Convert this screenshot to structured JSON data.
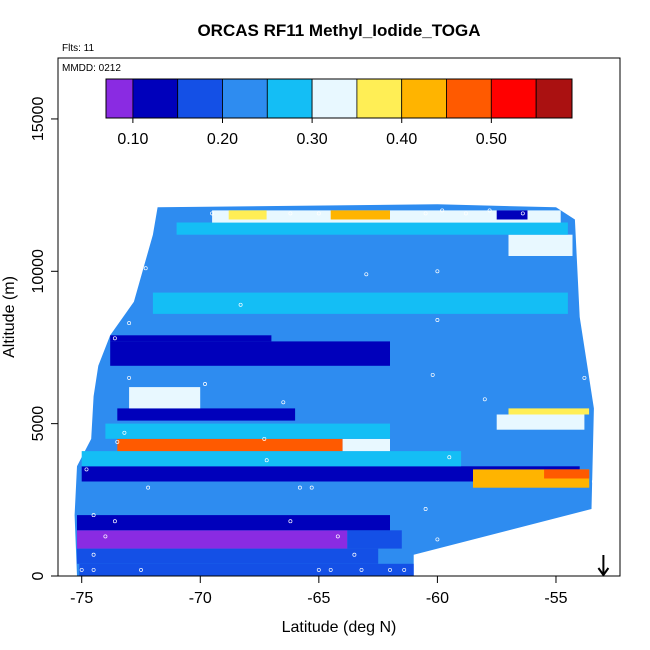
{
  "chart_data": {
    "type": "heatmap",
    "title": "ORCAS RF11 Methyl_Iodide_TOGA",
    "flights_label": "Flts: 11",
    "date_label": "MMDD: 0212",
    "xlabel": "Latitude (deg N)",
    "ylabel": "Altitude (m)",
    "xlim": [
      -76.0,
      -52.3
    ],
    "ylim": [
      0,
      17000
    ],
    "xticks": [
      -75,
      -70,
      -65,
      -60,
      -55
    ],
    "xtick_labels": [
      "-75",
      "-70",
      "-65",
      "-60",
      "-55"
    ],
    "yticks": [
      0,
      5000,
      10000,
      15000
    ],
    "ytick_labels": [
      "0",
      "5000",
      "10000",
      "15000"
    ],
    "grid": false,
    "colorbar": {
      "location": "top-inside",
      "range": [
        0.07,
        0.59
      ],
      "bins": [
        {
          "from": 0.07,
          "to": 0.1,
          "color": "#8a2be2"
        },
        {
          "from": 0.1,
          "to": 0.15,
          "color": "#0000bb"
        },
        {
          "from": 0.15,
          "to": 0.2,
          "color": "#1450e6"
        },
        {
          "from": 0.2,
          "to": 0.25,
          "color": "#2e8cf0"
        },
        {
          "from": 0.25,
          "to": 0.3,
          "color": "#14bef5"
        },
        {
          "from": 0.3,
          "to": 0.35,
          "color": "#e8f8ff"
        },
        {
          "from": 0.35,
          "to": 0.4,
          "color": "#ffee55"
        },
        {
          "from": 0.4,
          "to": 0.45,
          "color": "#ffb400"
        },
        {
          "from": 0.45,
          "to": 0.5,
          "color": "#ff5a00"
        },
        {
          "from": 0.5,
          "to": 0.55,
          "color": "#ff0000"
        },
        {
          "from": 0.55,
          "to": 0.59,
          "color": "#aa1111"
        }
      ],
      "ticks": [
        0.1,
        0.2,
        0.3,
        0.4,
        0.5
      ],
      "tick_labels": [
        "0.10",
        "0.20",
        "0.30",
        "0.40",
        "0.50"
      ]
    },
    "background_value": 0.22,
    "bands": [
      {
        "alt": [
          0,
          400
        ],
        "lat": [
          -75.1,
          -61.0
        ],
        "value": 0.15
      },
      {
        "alt": [
          400,
          900
        ],
        "lat": [
          -75.2,
          -62.5
        ],
        "value": 0.17
      },
      {
        "alt": [
          900,
          1500
        ],
        "lat": [
          -75.2,
          -63.8
        ],
        "value": 0.09
      },
      {
        "alt": [
          900,
          1500
        ],
        "lat": [
          -63.8,
          -61.5
        ],
        "value": 0.18
      },
      {
        "alt": [
          1500,
          2000
        ],
        "lat": [
          -75.2,
          -62.0
        ],
        "value": 0.13
      },
      {
        "alt": [
          3100,
          3600
        ],
        "lat": [
          -75.0,
          -54.0
        ],
        "value": 0.12
      },
      {
        "alt": [
          2900,
          3500
        ],
        "lat": [
          -58.5,
          -53.6
        ],
        "value": 0.42
      },
      {
        "alt": [
          3200,
          3500
        ],
        "lat": [
          -55.5,
          -53.6
        ],
        "value": 0.46
      },
      {
        "alt": [
          3600,
          4100
        ],
        "lat": [
          -75.0,
          -59.0
        ],
        "value": 0.26
      },
      {
        "alt": [
          4100,
          4500
        ],
        "lat": [
          -73.5,
          -64.0
        ],
        "value": 0.46
      },
      {
        "alt": [
          4100,
          4500
        ],
        "lat": [
          -64.0,
          -62.0
        ],
        "value": 0.34
      },
      {
        "alt": [
          4500,
          5000
        ],
        "lat": [
          -74.0,
          -62.0
        ],
        "value": 0.26
      },
      {
        "alt": [
          5100,
          5500
        ],
        "lat": [
          -73.5,
          -66.0
        ],
        "value": 0.12
      },
      {
        "alt": [
          5300,
          5500
        ],
        "lat": [
          -57.0,
          -53.6
        ],
        "value": 0.38
      },
      {
        "alt": [
          4800,
          5300
        ],
        "lat": [
          -57.5,
          -53.8
        ],
        "value": 0.3
      },
      {
        "alt": [
          5500,
          6200
        ],
        "lat": [
          -73.0,
          -70.0
        ],
        "value": 0.31
      },
      {
        "alt": [
          6900,
          7700
        ],
        "lat": [
          -73.8,
          -62.0
        ],
        "value": 0.13
      },
      {
        "alt": [
          7700,
          7900
        ],
        "lat": [
          -73.8,
          -67.0
        ],
        "value": 0.14
      },
      {
        "alt": [
          8600,
          9300
        ],
        "lat": [
          -72.0,
          -54.5
        ],
        "value": 0.26
      },
      {
        "alt": [
          10300,
          10800
        ],
        "lat": [
          -72.0,
          -56.5
        ],
        "value": 0.2
      },
      {
        "alt": [
          10500,
          11200
        ],
        "lat": [
          -57.0,
          -54.3
        ],
        "value": 0.3
      },
      {
        "alt": [
          11200,
          11600
        ],
        "lat": [
          -71.0,
          -54.5
        ],
        "value": 0.27
      },
      {
        "alt": [
          11600,
          12000
        ],
        "lat": [
          -69.5,
          -54.8
        ],
        "value": 0.31
      },
      {
        "alt": [
          11700,
          12000
        ],
        "lat": [
          -68.8,
          -67.2
        ],
        "value": 0.37
      },
      {
        "alt": [
          11700,
          12000
        ],
        "lat": [
          -64.5,
          -62.0
        ],
        "value": 0.42
      },
      {
        "alt": [
          11700,
          12000
        ],
        "lat": [
          -57.5,
          -56.2
        ],
        "value": 0.13
      }
    ],
    "samples": [
      {
        "lat": -75.0,
        "alt": 200
      },
      {
        "lat": -74.5,
        "alt": 200
      },
      {
        "lat": -72.5,
        "alt": 200
      },
      {
        "lat": -65.0,
        "alt": 200
      },
      {
        "lat": -64.5,
        "alt": 200
      },
      {
        "lat": -63.2,
        "alt": 200
      },
      {
        "lat": -62.0,
        "alt": 200
      },
      {
        "lat": -61.4,
        "alt": 200
      },
      {
        "lat": -74.5,
        "alt": 700
      },
      {
        "lat": -63.5,
        "alt": 700
      },
      {
        "lat": -74.0,
        "alt": 1300
      },
      {
        "lat": -64.2,
        "alt": 1300
      },
      {
        "lat": -60.0,
        "alt": 1200
      },
      {
        "lat": -73.6,
        "alt": 1800
      },
      {
        "lat": -66.2,
        "alt": 1800
      },
      {
        "lat": -74.5,
        "alt": 2000
      },
      {
        "lat": -60.5,
        "alt": 2200
      },
      {
        "lat": -65.8,
        "alt": 2900
      },
      {
        "lat": -65.3,
        "alt": 2900
      },
      {
        "lat": -72.2,
        "alt": 2900
      },
      {
        "lat": -74.8,
        "alt": 3500
      },
      {
        "lat": -59.5,
        "alt": 3900
      },
      {
        "lat": -67.2,
        "alt": 3800
      },
      {
        "lat": -73.5,
        "alt": 4400
      },
      {
        "lat": -67.3,
        "alt": 4500
      },
      {
        "lat": -73.2,
        "alt": 4700
      },
      {
        "lat": -66.5,
        "alt": 5700
      },
      {
        "lat": -69.8,
        "alt": 6300
      },
      {
        "lat": -73.0,
        "alt": 6500
      },
      {
        "lat": -60.2,
        "alt": 6600
      },
      {
        "lat": -73.6,
        "alt": 7800
      },
      {
        "lat": -73.0,
        "alt": 8300
      },
      {
        "lat": -60.0,
        "alt": 8400
      },
      {
        "lat": -68.3,
        "alt": 8900
      },
      {
        "lat": -72.3,
        "alt": 10100
      },
      {
        "lat": -63.0,
        "alt": 9900
      },
      {
        "lat": -60.0,
        "alt": 10000
      },
      {
        "lat": -53.8,
        "alt": 6500
      },
      {
        "lat": -58.0,
        "alt": 5800
      },
      {
        "lat": -59.8,
        "alt": 12000
      },
      {
        "lat": -69.5,
        "alt": 11900
      },
      {
        "lat": -66.2,
        "alt": 11900
      },
      {
        "lat": -65.0,
        "alt": 11900
      },
      {
        "lat": -60.5,
        "alt": 11900
      },
      {
        "lat": -58.8,
        "alt": 11900
      },
      {
        "lat": -57.8,
        "alt": 12000
      },
      {
        "lat": -56.4,
        "alt": 11900
      },
      {
        "lat": -53.4,
        "alt": 3100
      }
    ],
    "arrow_lat": -53.0
  }
}
